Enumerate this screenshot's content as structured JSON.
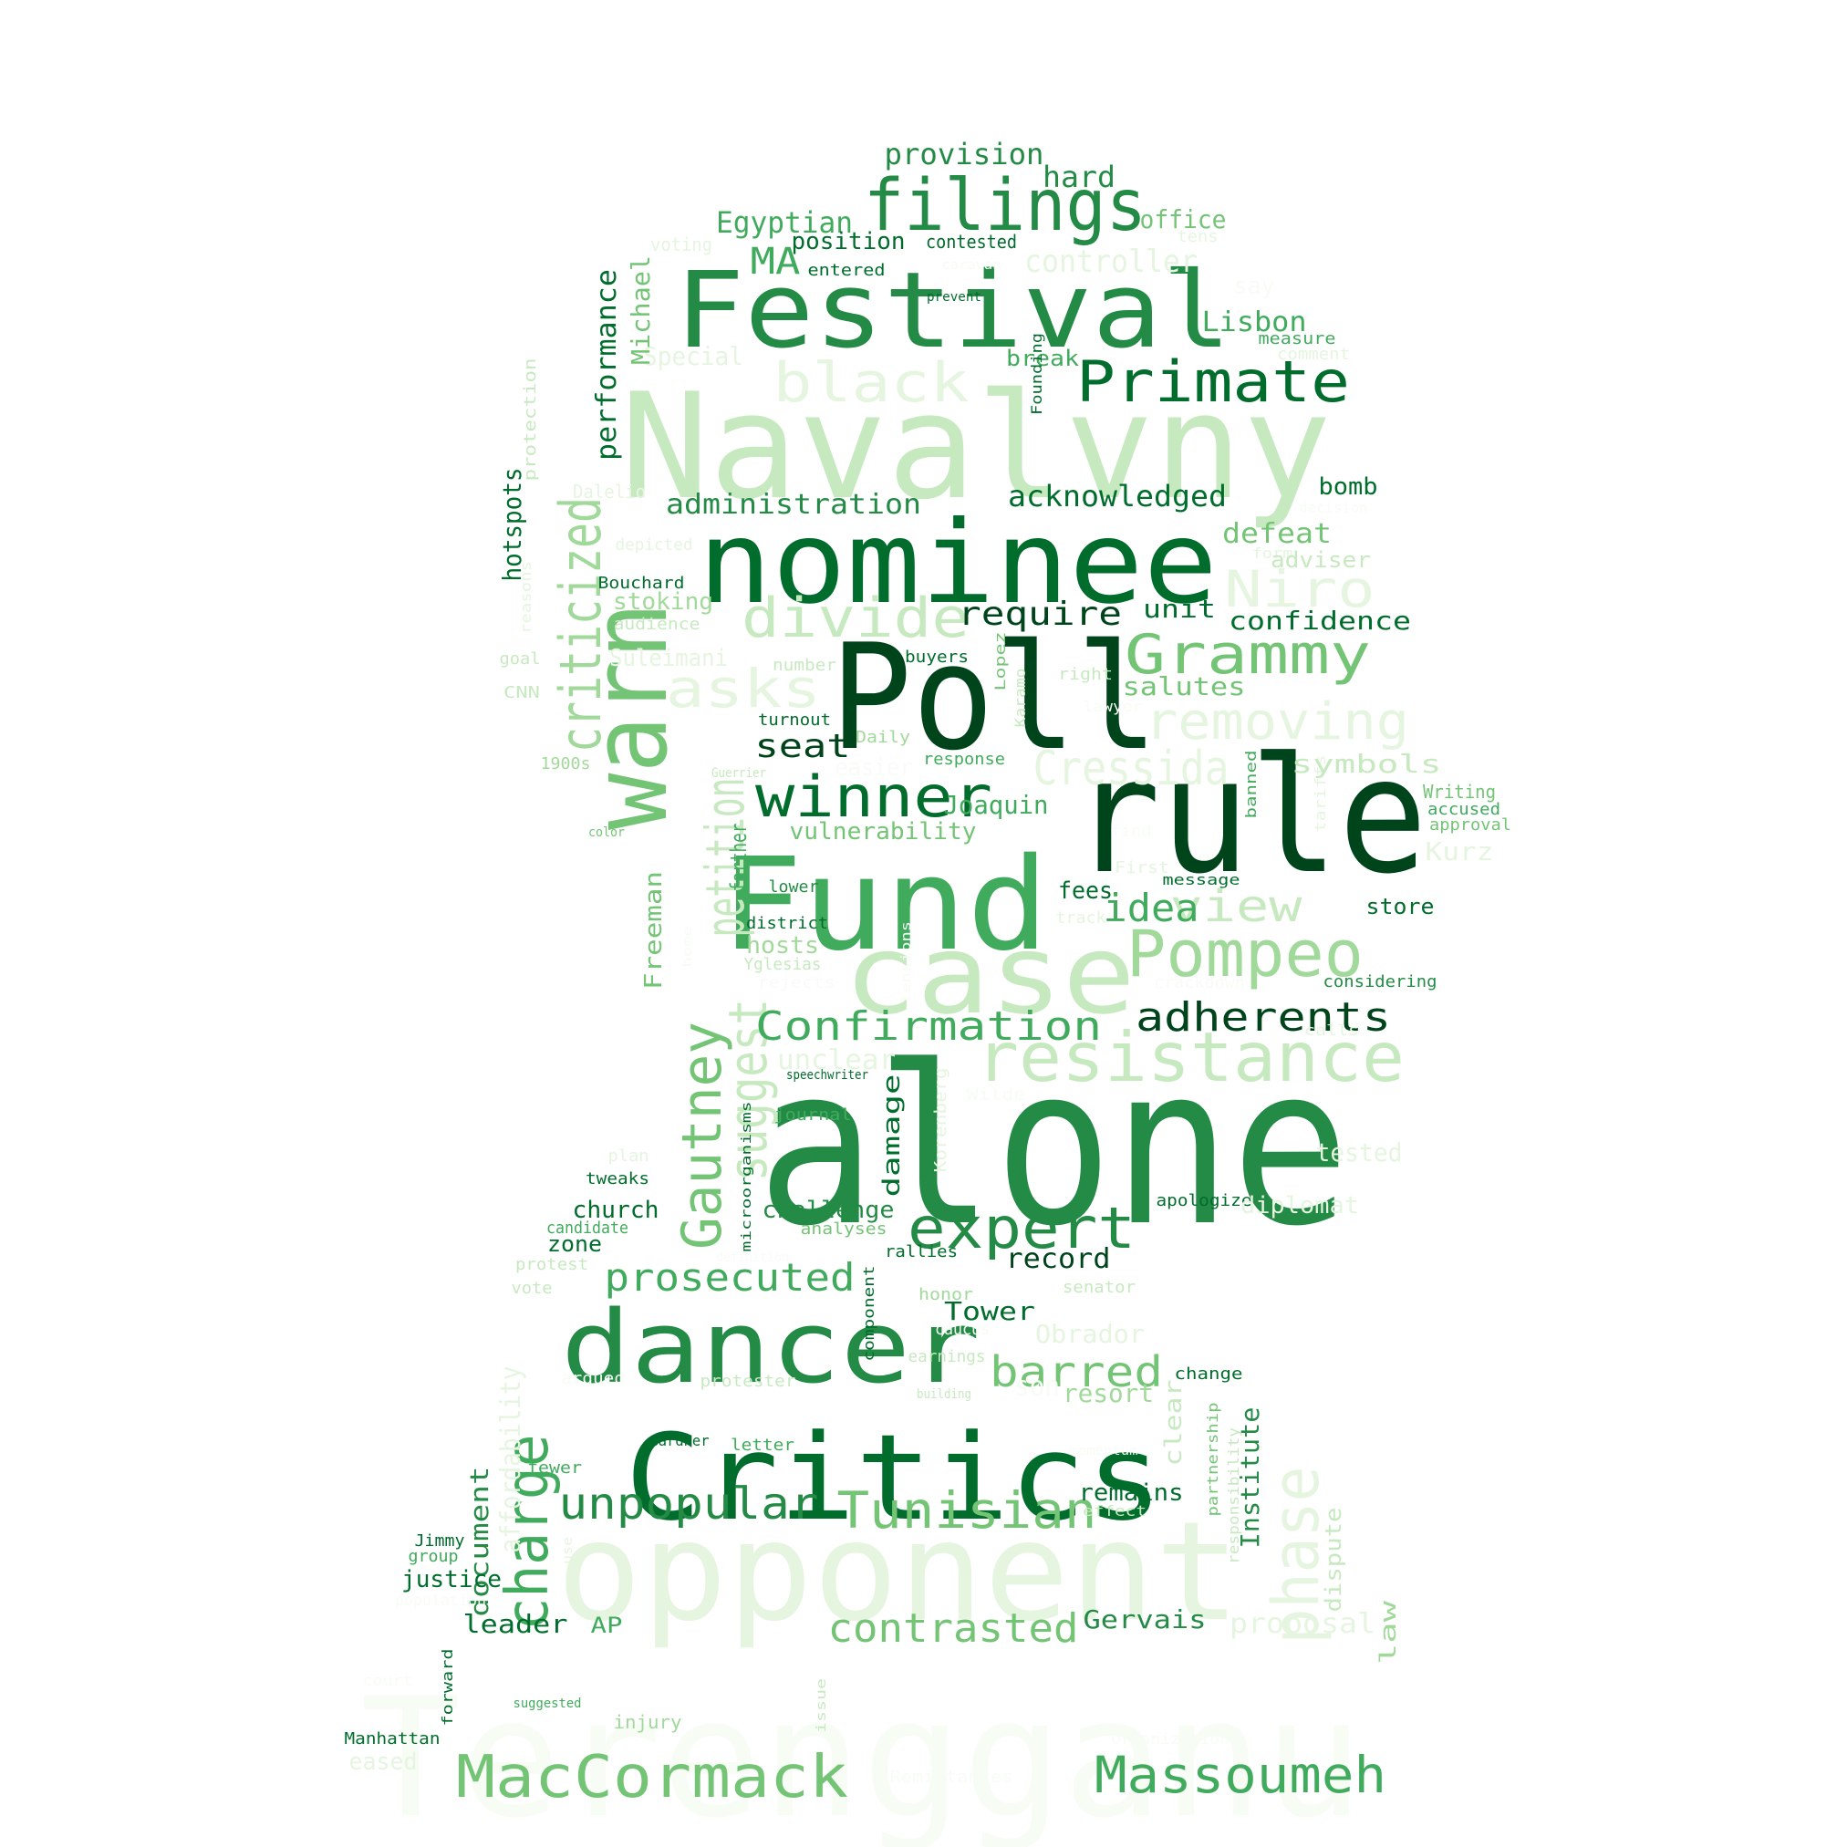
{
  "palette": {
    "c1": "#00441b",
    "c2": "#006d2c",
    "c3": "#238b45",
    "c4": "#41ab5d",
    "c5": "#74c476",
    "c6": "#a1d99b",
    "c7": "#c7e9c0",
    "c8": "#e5f5e0",
    "c9": "#f7fcf5"
  },
  "words": [
    {
      "text": "Terengganu",
      "color": "#f7fcf5"
    },
    {
      "text": "opponent",
      "color": "#e5f5e0"
    },
    {
      "text": "alone",
      "color": "#238b45"
    },
    {
      "text": "Navalvny",
      "color": "#c7e9c0"
    },
    {
      "text": "rule",
      "color": "#00441b"
    },
    {
      "text": "Poll",
      "color": "#00441b"
    },
    {
      "text": "Critics",
      "color": "#006d2c"
    },
    {
      "text": "Fund",
      "color": "#41ab5d"
    },
    {
      "text": "case",
      "color": "#c7e9c0"
    },
    {
      "text": "nominee",
      "color": "#006d2c"
    },
    {
      "text": "Festival",
      "color": "#238b45"
    },
    {
      "text": "warn",
      "color": "#74c476"
    },
    {
      "text": "dancer",
      "color": "#238b45"
    },
    {
      "text": "criticized",
      "color": "#a1d99b"
    },
    {
      "text": "filings",
      "color": "#238b45"
    },
    {
      "text": "Primate",
      "color": "#006d2c"
    },
    {
      "text": "black",
      "color": "#e5f5e0"
    },
    {
      "text": "winner",
      "color": "#006d2c"
    },
    {
      "text": "Gautney",
      "color": "#74c476"
    },
    {
      "text": "petition",
      "color": "#c7e9c0"
    },
    {
      "text": "suggest",
      "color": "#c7e9c0"
    },
    {
      "text": "charge",
      "color": "#41ab5d"
    },
    {
      "text": "phase",
      "color": "#e5f5e0"
    },
    {
      "text": "resistance",
      "color": "#c7e9c0"
    },
    {
      "text": "Pompeo",
      "color": "#a1d99b"
    },
    {
      "text": "expert",
      "color": "#238b45"
    },
    {
      "text": "divide",
      "color": "#c7e9c0"
    },
    {
      "text": "asks",
      "color": "#e5f5e0"
    },
    {
      "text": "Grammy",
      "color": "#74c476"
    },
    {
      "text": "removing",
      "color": "#e5f5e0"
    },
    {
      "text": "Niro",
      "color": "#e5f5e0"
    },
    {
      "text": "Cressida",
      "color": "#e5f5e0"
    },
    {
      "text": "Confirmation",
      "color": "#41ab5d"
    },
    {
      "text": "adherents",
      "color": "#00441b"
    },
    {
      "text": "view",
      "color": "#c7e9c0"
    },
    {
      "text": "idea",
      "color": "#41ab5d"
    },
    {
      "text": "unpopular",
      "color": "#238b45"
    },
    {
      "text": "Tunisian",
      "color": "#74c476"
    },
    {
      "text": "MacCormack",
      "color": "#74c476"
    },
    {
      "text": "Massoumeh",
      "color": "#41ab5d"
    },
    {
      "text": "contrasted",
      "color": "#74c476"
    },
    {
      "text": "prosecuted",
      "color": "#41ab5d"
    },
    {
      "text": "barred",
      "color": "#74c476"
    },
    {
      "text": "MA",
      "color": "#41ab5d"
    },
    {
      "text": "require",
      "color": "#00441b"
    },
    {
      "text": "seat",
      "color": "#00441b"
    },
    {
      "text": "provision",
      "color": "#238b45"
    },
    {
      "text": "hard",
      "color": "#238b45"
    },
    {
      "text": "Egyptian",
      "color": "#41ab5d"
    },
    {
      "text": "office",
      "color": "#74c476"
    },
    {
      "text": "position",
      "color": "#006d2c"
    },
    {
      "text": "contested",
      "color": "#006d2c"
    },
    {
      "text": "controller",
      "color": "#e5f5e0"
    },
    {
      "text": "entered",
      "color": "#006d2c"
    },
    {
      "text": "voting",
      "color": "#e5f5e0"
    },
    {
      "text": "tens",
      "color": "#e5f5e0"
    },
    {
      "text": "caravan",
      "color": "#f7fcf5"
    },
    {
      "text": "prevent",
      "color": "#006d2c"
    },
    {
      "text": "say",
      "color": "#f7fcf5"
    },
    {
      "text": "Lisbon",
      "color": "#41ab5d"
    },
    {
      "text": "measure",
      "color": "#41ab5d"
    },
    {
      "text": "comment",
      "color": "#e5f5e0"
    },
    {
      "text": "break",
      "color": "#41ab5d"
    },
    {
      "text": "Special",
      "color": "#e5f5e0"
    },
    {
      "text": "performance",
      "color": "#006d2c"
    },
    {
      "text": "Michael",
      "color": "#74c476"
    },
    {
      "text": "Founding",
      "color": "#006d2c"
    },
    {
      "text": "protection",
      "color": "#c7e9c0"
    },
    {
      "text": "hotspots",
      "color": "#006d2c"
    },
    {
      "text": "administration",
      "color": "#238b45"
    },
    {
      "text": "acknowledged",
      "color": "#006d2c"
    },
    {
      "text": "bomb",
      "color": "#006d2c"
    },
    {
      "text": "Dalelio",
      "color": "#e5f5e0"
    },
    {
      "text": "decision",
      "color": "#f7fcf5"
    },
    {
      "text": "defeat",
      "color": "#74c476"
    },
    {
      "text": "depicted",
      "color": "#e5f5e0"
    },
    {
      "text": "form",
      "color": "#e5f5e0"
    },
    {
      "text": "adviser",
      "color": "#c7e9c0"
    },
    {
      "text": "reasons",
      "color": "#e5f5e0"
    },
    {
      "text": "Bouchard",
      "color": "#006d2c"
    },
    {
      "text": "stoking",
      "color": "#a1d99b"
    },
    {
      "text": "unit",
      "color": "#006d2c"
    },
    {
      "text": "confidence",
      "color": "#006d2c"
    },
    {
      "text": "audience",
      "color": "#c7e9c0"
    },
    {
      "text": "goal",
      "color": "#c7e9c0"
    },
    {
      "text": "Suleimani",
      "color": "#e5f5e0"
    },
    {
      "text": "number",
      "color": "#c7e9c0"
    },
    {
      "text": "buyers",
      "color": "#006d2c"
    },
    {
      "text": "Lopez",
      "color": "#74c476"
    },
    {
      "text": "Karamo",
      "color": "#c7e9c0"
    },
    {
      "text": "right",
      "color": "#c7e9c0"
    },
    {
      "text": "salutes",
      "color": "#74c476"
    },
    {
      "text": "CNN",
      "color": "#c7e9c0"
    },
    {
      "text": "lawyer",
      "color": "#f7fcf5"
    },
    {
      "text": "turnout",
      "color": "#006d2c"
    },
    {
      "text": "Daily",
      "color": "#a1d99b"
    },
    {
      "text": "easier",
      "color": "#f7fcf5"
    },
    {
      "text": "response",
      "color": "#41ab5d"
    },
    {
      "text": "1900s",
      "color": "#a1d99b"
    },
    {
      "text": "Guerrier",
      "color": "#c7e9c0"
    },
    {
      "text": "banned",
      "color": "#41ab5d"
    },
    {
      "text": "tariffs",
      "color": "#e5f5e0"
    },
    {
      "text": "symbols",
      "color": "#c7e9c0"
    },
    {
      "text": "Writing",
      "color": "#74c476"
    },
    {
      "text": "accused",
      "color": "#41ab5d"
    },
    {
      "text": "approval",
      "color": "#74c476"
    },
    {
      "text": "color",
      "color": "#74c476"
    },
    {
      "text": "Joaquin",
      "color": "#41ab5d"
    },
    {
      "text": "vulnerability",
      "color": "#74c476"
    },
    {
      "text": "farther",
      "color": "#41ab5d"
    },
    {
      "text": "find",
      "color": "#f7fcf5"
    },
    {
      "text": "Kurz",
      "color": "#e5f5e0"
    },
    {
      "text": "Freeman",
      "color": "#74c476"
    },
    {
      "text": "lower",
      "color": "#238b45"
    },
    {
      "text": "First",
      "color": "#e5f5e0"
    },
    {
      "text": "message",
      "color": "#006d2c"
    },
    {
      "text": "fees",
      "color": "#006d2c"
    },
    {
      "text": "store",
      "color": "#006d2c"
    },
    {
      "text": "track",
      "color": "#e5f5e0"
    },
    {
      "text": "district",
      "color": "#006d2c"
    },
    {
      "text": "hosts",
      "color": "#a1d99b"
    },
    {
      "text": "home",
      "color": "#f7fcf5"
    },
    {
      "text": "Yglesias",
      "color": "#c7e9c0"
    },
    {
      "text": "rejects",
      "color": "#f7fcf5"
    },
    {
      "text": "tensions",
      "color": "#f7fcf5"
    },
    {
      "text": "crackdown",
      "color": "#f7fcf5"
    },
    {
      "text": "considering",
      "color": "#238b45"
    },
    {
      "text": "unclear",
      "color": "#e5f5e0"
    },
    {
      "text": "calls",
      "color": "#e5f5e0"
    },
    {
      "text": "speechwriter",
      "color": "#006d2c"
    },
    {
      "text": "Korenberg",
      "color": "#e5f5e0"
    },
    {
      "text": "Wilde",
      "color": "#f7fcf5"
    },
    {
      "text": "microorganisms",
      "color": "#006d2c"
    },
    {
      "text": "journal",
      "color": "#41ab5d"
    },
    {
      "text": "damage",
      "color": "#006d2c"
    },
    {
      "text": "tested",
      "color": "#e5f5e0"
    },
    {
      "text": "plan",
      "color": "#e5f5e0"
    },
    {
      "text": "tweaks",
      "color": "#006d2c"
    },
    {
      "text": "apologize",
      "color": "#006d2c"
    },
    {
      "text": "diplomat",
      "color": "#e5f5e0"
    },
    {
      "text": "church",
      "color": "#006d2c"
    },
    {
      "text": "challenge",
      "color": "#238b45"
    },
    {
      "text": "candidate",
      "color": "#41ab5d"
    },
    {
      "text": "analyses",
      "color": "#74c476"
    },
    {
      "text": "zone",
      "color": "#006d2c"
    },
    {
      "text": "rallies",
      "color": "#006d2c"
    },
    {
      "text": "record",
      "color": "#00441b"
    },
    {
      "text": "definition",
      "color": "#f7fcf5"
    },
    {
      "text": "protest",
      "color": "#c7e9c0"
    },
    {
      "text": "component",
      "color": "#006d2c"
    },
    {
      "text": "vote",
      "color": "#c7e9c0"
    },
    {
      "text": "honor",
      "color": "#a1d99b"
    },
    {
      "text": "senator",
      "color": "#c7e9c0"
    },
    {
      "text": "Tower",
      "color": "#006d2c"
    },
    {
      "text": "caucus",
      "color": "#f7fcf5"
    },
    {
      "text": "Obrador",
      "color": "#e5f5e0"
    },
    {
      "text": "earnings",
      "color": "#c7e9c0"
    },
    {
      "text": "son",
      "color": "#f7fcf5"
    },
    {
      "text": "resort",
      "color": "#a1d99b"
    },
    {
      "text": "affordability",
      "color": "#e5f5e0"
    },
    {
      "text": "argued",
      "color": "#f7fcf5"
    },
    {
      "text": "protester",
      "color": "#c7e9c0"
    },
    {
      "text": "building",
      "color": "#c7e9c0"
    },
    {
      "text": "change",
      "color": "#006d2c"
    },
    {
      "text": "clear",
      "color": "#c7e9c0"
    },
    {
      "text": "Institute",
      "color": "#238b45"
    },
    {
      "text": "Gardner",
      "color": "#006d2c"
    },
    {
      "text": "letter",
      "color": "#41ab5d"
    },
    {
      "text": "momentum",
      "color": "#f7fcf5"
    },
    {
      "text": "partnership",
      "color": "#74c476"
    },
    {
      "text": "responsibility",
      "color": "#c7e9c0"
    },
    {
      "text": "document",
      "color": "#238b45"
    },
    {
      "text": "fewer",
      "color": "#41ab5d"
    },
    {
      "text": "remains",
      "color": "#006d2c"
    },
    {
      "text": "effect",
      "color": "#c7e9c0"
    },
    {
      "text": "dispute",
      "color": "#c7e9c0"
    },
    {
      "text": "Jimmy",
      "color": "#006d2c"
    },
    {
      "text": "group",
      "color": "#41ab5d"
    },
    {
      "text": "use",
      "color": "#e5f5e0"
    },
    {
      "text": "justice",
      "color": "#006d2c"
    },
    {
      "text": "population",
      "color": "#f7fcf5"
    },
    {
      "text": "leader",
      "color": "#006d2c"
    },
    {
      "text": "AP",
      "color": "#41ab5d"
    },
    {
      "text": "Gervais",
      "color": "#238b45"
    },
    {
      "text": "proposal",
      "color": "#e5f5e0"
    },
    {
      "text": "law",
      "color": "#a1d99b"
    },
    {
      "text": "forward",
      "color": "#006d2c"
    },
    {
      "text": "court",
      "color": "#f7fcf5"
    },
    {
      "text": "suggested",
      "color": "#41ab5d"
    },
    {
      "text": "issue",
      "color": "#c7e9c0"
    },
    {
      "text": "injury",
      "color": "#a1d99b"
    },
    {
      "text": "Manhattan",
      "color": "#006d2c"
    },
    {
      "text": "eased",
      "color": "#e5f5e0"
    },
    {
      "text": "Organization",
      "color": "#f7fcf5"
    },
    {
      "text": "Remittances",
      "color": "#f7fcf5"
    }
  ]
}
